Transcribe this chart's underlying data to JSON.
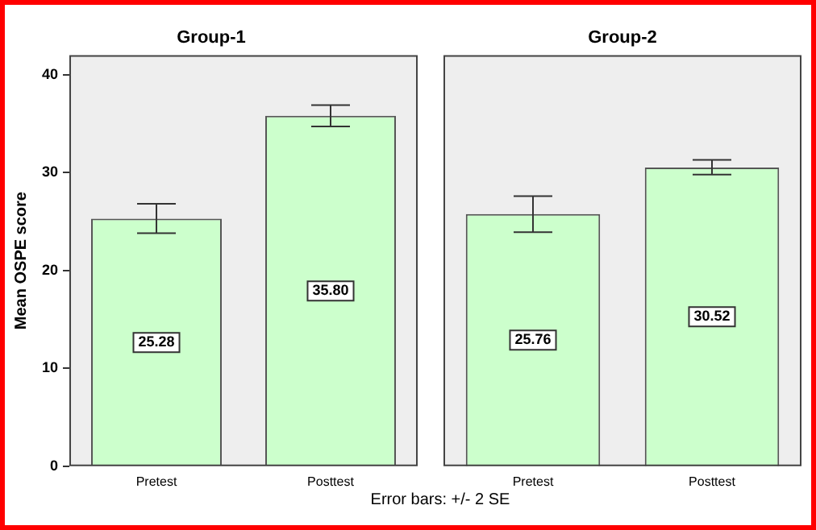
{
  "chart_data": [
    {
      "type": "bar",
      "title": "Group-1",
      "ylabel": "Mean OSPE score",
      "categories": [
        "Pretest",
        "Posttest"
      ],
      "values": [
        25.28,
        35.8
      ],
      "value_labels": [
        "25.28",
        "35.80"
      ],
      "errors": [
        [
          23.8,
          26.8
        ],
        [
          34.7,
          36.9
        ]
      ],
      "color": "#ccffcc",
      "ylim": [
        0,
        42
      ],
      "yticks": [
        0,
        10,
        20,
        30,
        40
      ],
      "grid": false,
      "legend": false,
      "annotations": [
        "Error bars: +/- 2 SE"
      ]
    },
    {
      "type": "bar",
      "title": "Group-2",
      "categories": [
        "Pretest",
        "Posttest"
      ],
      "values": [
        25.76,
        30.52
      ],
      "value_labels": [
        "25.76",
        "30.52"
      ],
      "errors": [
        [
          23.9,
          27.6
        ],
        [
          29.8,
          31.3
        ]
      ],
      "color": "#ccffcc",
      "ylim": [
        0,
        42
      ],
      "yticks": [
        0,
        10,
        20,
        30,
        40
      ],
      "grid": false,
      "legend": false,
      "tick_labels": "x"
    }
  ]
}
